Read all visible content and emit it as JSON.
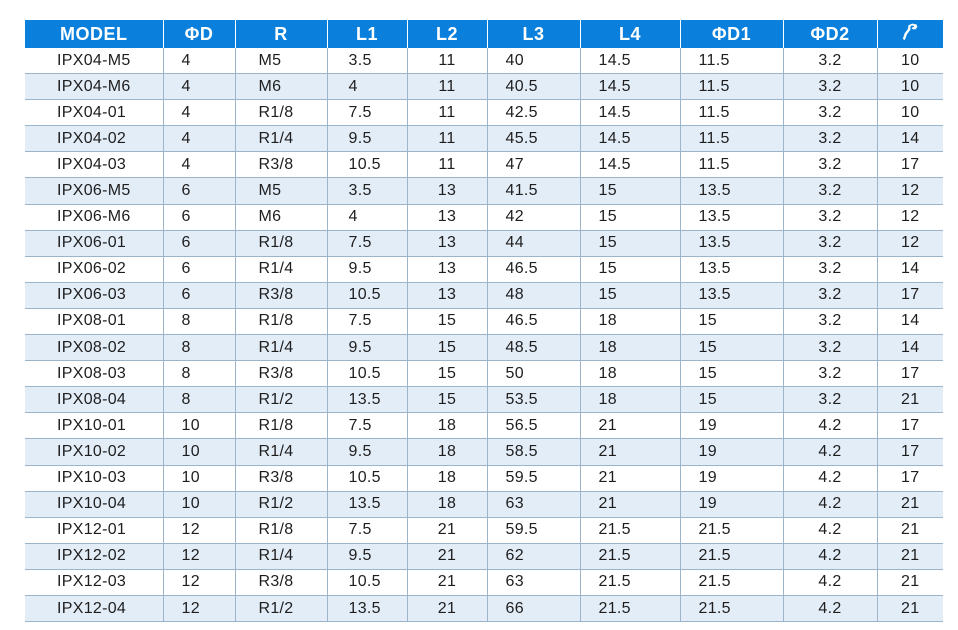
{
  "table": {
    "headers": {
      "model": "MODEL",
      "d": "ΦD",
      "r": "R",
      "l1": "L1",
      "l2": "L2",
      "l3": "L3",
      "l4": "L4",
      "d1": "ΦD1",
      "d2": "ΦD2",
      "wrench": "wrench-icon"
    },
    "rows": [
      [
        "IPX04-M5",
        "4",
        "M5",
        "3.5",
        "11",
        "40",
        "14.5",
        "11.5",
        "3.2",
        "10"
      ],
      [
        "IPX04-M6",
        "4",
        "M6",
        "4",
        "11",
        "40.5",
        "14.5",
        "11.5",
        "3.2",
        "10"
      ],
      [
        "IPX04-01",
        "4",
        "R1/8",
        "7.5",
        "11",
        "42.5",
        "14.5",
        "11.5",
        "3.2",
        "10"
      ],
      [
        "IPX04-02",
        "4",
        "R1/4",
        "9.5",
        "11",
        "45.5",
        "14.5",
        "11.5",
        "3.2",
        "14"
      ],
      [
        "IPX04-03",
        "4",
        "R3/8",
        "10.5",
        "11",
        "47",
        "14.5",
        "11.5",
        "3.2",
        "17"
      ],
      [
        "IPX06-M5",
        "6",
        "M5",
        "3.5",
        "13",
        "41.5",
        "15",
        "13.5",
        "3.2",
        "12"
      ],
      [
        "IPX06-M6",
        "6",
        "M6",
        "4",
        "13",
        "42",
        "15",
        "13.5",
        "3.2",
        "12"
      ],
      [
        "IPX06-01",
        "6",
        "R1/8",
        "7.5",
        "13",
        "44",
        "15",
        "13.5",
        "3.2",
        "12"
      ],
      [
        "IPX06-02",
        "6",
        "R1/4",
        "9.5",
        "13",
        "46.5",
        "15",
        "13.5",
        "3.2",
        "14"
      ],
      [
        "IPX06-03",
        "6",
        "R3/8",
        "10.5",
        "13",
        "48",
        "15",
        "13.5",
        "3.2",
        "17"
      ],
      [
        "IPX08-01",
        "8",
        "R1/8",
        "7.5",
        "15",
        "46.5",
        "18",
        "15",
        "3.2",
        "14"
      ],
      [
        "IPX08-02",
        "8",
        "R1/4",
        "9.5",
        "15",
        "48.5",
        "18",
        "15",
        "3.2",
        "14"
      ],
      [
        "IPX08-03",
        "8",
        "R3/8",
        "10.5",
        "15",
        "50",
        "18",
        "15",
        "3.2",
        "17"
      ],
      [
        "IPX08-04",
        "8",
        "R1/2",
        "13.5",
        "15",
        "53.5",
        "18",
        "15",
        "3.2",
        "21"
      ],
      [
        "IPX10-01",
        "10",
        "R1/8",
        "7.5",
        "18",
        "56.5",
        "21",
        "19",
        "4.2",
        "17"
      ],
      [
        "IPX10-02",
        "10",
        "R1/4",
        "9.5",
        "18",
        "58.5",
        "21",
        "19",
        "4.2",
        "17"
      ],
      [
        "IPX10-03",
        "10",
        "R3/8",
        "10.5",
        "18",
        "59.5",
        "21",
        "19",
        "4.2",
        "17"
      ],
      [
        "IPX10-04",
        "10",
        "R1/2",
        "13.5",
        "18",
        "63",
        "21",
        "19",
        "4.2",
        "21"
      ],
      [
        "IPX12-01",
        "12",
        "R1/8",
        "7.5",
        "21",
        "59.5",
        "21.5",
        "21.5",
        "4.2",
        "21"
      ],
      [
        "IPX12-02",
        "12",
        "R1/4",
        "9.5",
        "21",
        "62",
        "21.5",
        "21.5",
        "4.2",
        "21"
      ],
      [
        "IPX12-03",
        "12",
        "R3/8",
        "10.5",
        "21",
        "63",
        "21.5",
        "21.5",
        "4.2",
        "21"
      ],
      [
        "IPX12-04",
        "12",
        "R1/2",
        "13.5",
        "21",
        "66",
        "21.5",
        "21.5",
        "4.2",
        "21"
      ]
    ]
  },
  "colors": {
    "header_bg": "#0a80dc",
    "header_text": "#ffffff",
    "alt_row_bg": "#e3edf8",
    "grid_line": "#9cb5cb"
  }
}
